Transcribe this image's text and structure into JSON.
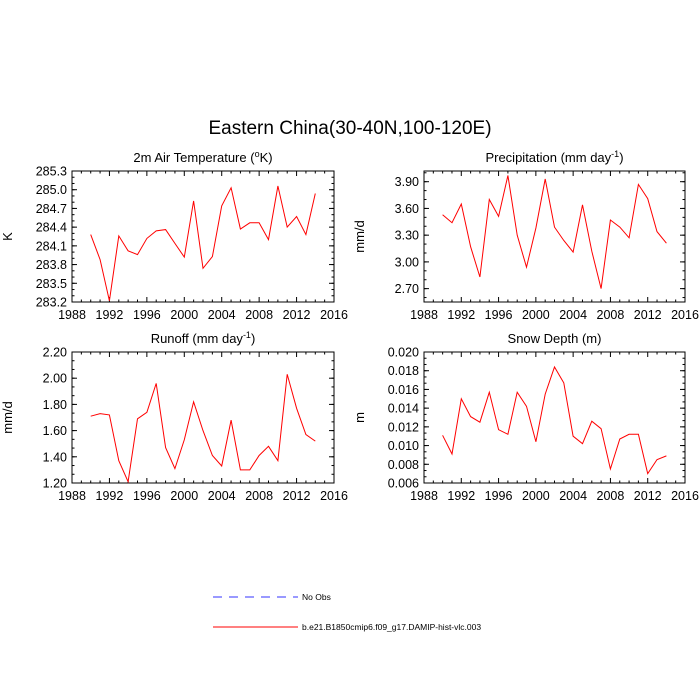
{
  "title": "Eastern China(30-40N,100-120E)",
  "chart_data": [
    {
      "type": "line",
      "title_main": "2m Air Temperature (",
      "title_sup": "o",
      "title_tail": "K)",
      "ylabel": "K",
      "xlim": [
        1988,
        2016
      ],
      "ylim": [
        283.2,
        285.3
      ],
      "xticks": [
        "1988",
        "1992",
        "1996",
        "2000",
        "2004",
        "2008",
        "2012",
        "2016"
      ],
      "yticks": [
        "283.2",
        "283.5",
        "283.8",
        "284.1",
        "284.4",
        "284.7",
        "285.0",
        "285.3"
      ],
      "x": [
        1990,
        1991,
        1992,
        1993,
        1994,
        1995,
        1996,
        1997,
        1998,
        1999,
        2000,
        2001,
        2002,
        2003,
        2004,
        2005,
        2006,
        2007,
        2008,
        2009,
        2010,
        2011,
        2012,
        2013,
        2014
      ],
      "series": [
        {
          "name": "b.e21.B1850cmip6.f09_g17.DAMIP-hist-vlc.003",
          "values": [
            284.28,
            283.88,
            283.22,
            284.26,
            284.02,
            283.96,
            284.22,
            284.34,
            284.36,
            284.14,
            283.92,
            284.82,
            283.74,
            283.93,
            284.74,
            285.03,
            284.37,
            284.47,
            284.47,
            284.2,
            285.06,
            284.4,
            284.57,
            284.28,
            284.94
          ]
        }
      ]
    },
    {
      "type": "line",
      "title_main": "Precipitation (mm day",
      "title_sup": "-1",
      "title_tail": ")",
      "ylabel": "mm/d",
      "xlim": [
        1988,
        2016
      ],
      "ylim": [
        2.55,
        4.02
      ],
      "xticks": [
        "1988",
        "1992",
        "1996",
        "2000",
        "2004",
        "2008",
        "2012",
        "2016"
      ],
      "yticks": [
        "2.70",
        "3.00",
        "3.30",
        "3.60",
        "3.90"
      ],
      "x": [
        1990,
        1991,
        1992,
        1993,
        1994,
        1995,
        1996,
        1997,
        1998,
        1999,
        2000,
        2001,
        2002,
        2003,
        2004,
        2005,
        2006,
        2007,
        2008,
        2009,
        2010,
        2011,
        2012,
        2013,
        2014
      ],
      "series": [
        {
          "name": "b.e21.B1850cmip6.f09_g17.DAMIP-hist-vlc.003",
          "values": [
            3.53,
            3.44,
            3.65,
            3.17,
            2.83,
            3.7,
            3.51,
            3.97,
            3.3,
            2.94,
            3.38,
            3.93,
            3.39,
            3.24,
            3.11,
            3.64,
            3.12,
            2.7,
            3.47,
            3.39,
            3.27,
            3.87,
            3.71,
            3.34,
            3.21
          ]
        }
      ]
    },
    {
      "type": "line",
      "title_main": "Runoff (mm day",
      "title_sup": "-1",
      "title_tail": ")",
      "ylabel": "mm/d",
      "xlim": [
        1988,
        2016
      ],
      "ylim": [
        1.2,
        2.2
      ],
      "xticks": [
        "1988",
        "1992",
        "1996",
        "2000",
        "2004",
        "2008",
        "2012",
        "2016"
      ],
      "yticks": [
        "1.20",
        "1.40",
        "1.60",
        "1.80",
        "2.00",
        "2.20"
      ],
      "x": [
        1990,
        1991,
        1992,
        1993,
        1994,
        1995,
        1996,
        1997,
        1998,
        1999,
        2000,
        2001,
        2002,
        2003,
        2004,
        2005,
        2006,
        2007,
        2008,
        2009,
        2010,
        2011,
        2012,
        2013,
        2014
      ],
      "series": [
        {
          "name": "b.e21.B1850cmip6.f09_g17.DAMIP-hist-vlc.003",
          "values": [
            1.71,
            1.73,
            1.72,
            1.37,
            1.21,
            1.69,
            1.74,
            1.96,
            1.47,
            1.31,
            1.53,
            1.82,
            1.6,
            1.41,
            1.33,
            1.68,
            1.3,
            1.3,
            1.41,
            1.48,
            1.37,
            2.03,
            1.77,
            1.57,
            1.52
          ]
        }
      ]
    },
    {
      "type": "line",
      "title_main": "Snow Depth (m)",
      "title_sup": "",
      "title_tail": "",
      "ylabel": "m",
      "xlim": [
        1988,
        2016
      ],
      "ylim": [
        0.006,
        0.02
      ],
      "xticks": [
        "1988",
        "1992",
        "1996",
        "2000",
        "2004",
        "2008",
        "2012",
        "2016"
      ],
      "yticks": [
        "0.006",
        "0.008",
        "0.010",
        "0.012",
        "0.014",
        "0.016",
        "0.018",
        "0.020"
      ],
      "x": [
        1990,
        1991,
        1992,
        1993,
        1994,
        1995,
        1996,
        1997,
        1998,
        1999,
        2000,
        2001,
        2002,
        2003,
        2004,
        2005,
        2006,
        2007,
        2008,
        2009,
        2010,
        2011,
        2012,
        2013,
        2014
      ],
      "series": [
        {
          "name": "b.e21.B1850cmip6.f09_g17.DAMIP-hist-vlc.003",
          "values": [
            0.0111,
            0.0091,
            0.015,
            0.0131,
            0.0125,
            0.0157,
            0.0117,
            0.0112,
            0.0157,
            0.0142,
            0.0104,
            0.0155,
            0.0184,
            0.0167,
            0.011,
            0.0102,
            0.0126,
            0.0118,
            0.0075,
            0.0107,
            0.0112,
            0.0112,
            0.007,
            0.0085,
            0.0089
          ]
        }
      ]
    }
  ],
  "legend": [
    {
      "label": "No Obs",
      "color": "#3333ff",
      "style": "dashed"
    },
    {
      "label": "b.e21.B1850cmip6.f09_g17.DAMIP-hist-vlc.003",
      "color": "#ff0000",
      "style": "solid"
    }
  ],
  "colors": {
    "series": "#ff0000",
    "obs": "#3333ff",
    "axis": "#000000"
  }
}
